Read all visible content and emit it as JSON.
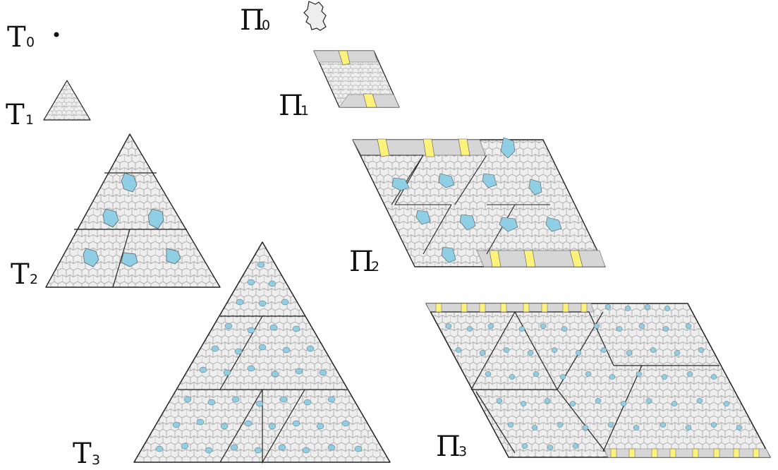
{
  "figure": {
    "labels": {
      "t0": {
        "main": "T",
        "sub": "0"
      },
      "t1": {
        "main": "T",
        "sub": "1"
      },
      "t2": {
        "main": "T",
        "sub": "2"
      },
      "t3": {
        "main": "T",
        "sub": "3"
      },
      "p0": {
        "main": "Π",
        "sub": "0"
      },
      "p1": {
        "main": "Π",
        "sub": "1"
      },
      "p2": {
        "main": "Π",
        "sub": "2"
      },
      "p3": {
        "main": "Π",
        "sub": "3"
      }
    },
    "colors": {
      "tile_fill": "#eeeeee",
      "tile_stroke": "#9a9a9a",
      "outline": "#111111",
      "blue": "#8ecfe6",
      "yellow": "#fff27a",
      "dark_tile": "#d5d5d5"
    }
  }
}
